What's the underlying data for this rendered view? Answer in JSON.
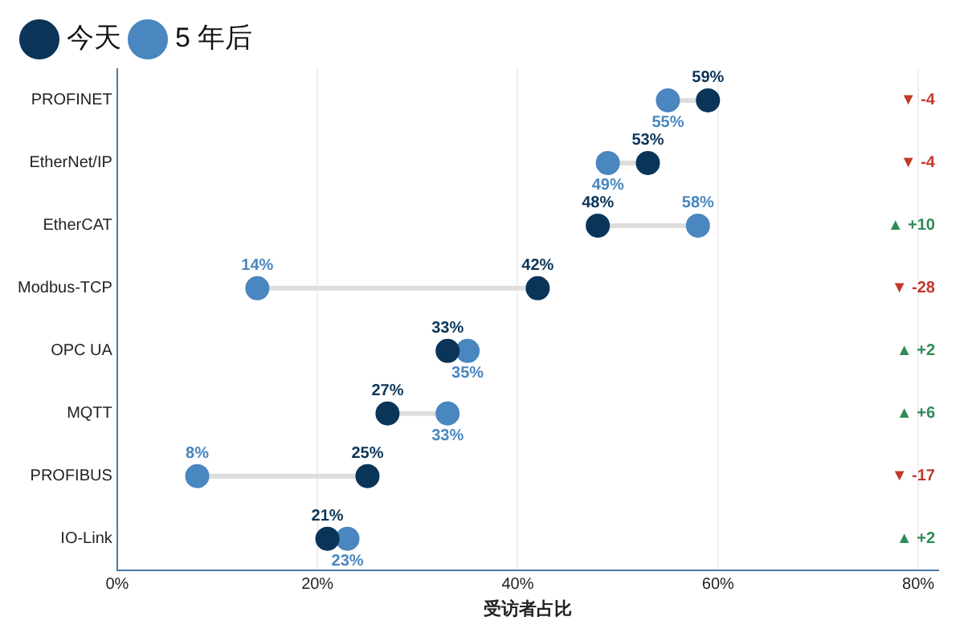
{
  "chart_data": {
    "type": "scatter",
    "orientation": "horizontal",
    "xlabel": "受访者占比",
    "categories": [
      "PROFINET",
      "EtherNet/IP",
      "EtherCAT",
      "Modbus-TCP",
      "OPC UA",
      "MQTT",
      "PROFIBUS",
      "IO-Link"
    ],
    "series": [
      {
        "name": "今天",
        "color": "#0b3558",
        "values": [
          59,
          53,
          48,
          42,
          33,
          27,
          25,
          21
        ],
        "value_labels": [
          "59%",
          "53%",
          "48%",
          "42%",
          "33%",
          "27%",
          "25%",
          "21%"
        ]
      },
      {
        "name": "5 年后",
        "color": "#4a86c0",
        "values": [
          55,
          49,
          58,
          14,
          35,
          33,
          8,
          23
        ],
        "value_labels": [
          "55%",
          "49%",
          "58%",
          "14%",
          "35%",
          "33%",
          "8%",
          "23%"
        ]
      }
    ],
    "xlim": [
      0,
      82
    ],
    "xticks": [
      {
        "value": 0,
        "label": "0%"
      },
      {
        "value": 20,
        "label": "20%"
      },
      {
        "value": 40,
        "label": "40%"
      },
      {
        "value": 60,
        "label": "60%"
      },
      {
        "value": 80,
        "label": "80%"
      }
    ],
    "grid": "x",
    "legend": "top left",
    "marker": "circle",
    "annotations": [
      "▼ -4",
      "▼ -4",
      "▲ +10",
      "▼ -28",
      "▲ +2",
      "▲ +6",
      "▼ -17",
      "▲ +2"
    ]
  }
}
